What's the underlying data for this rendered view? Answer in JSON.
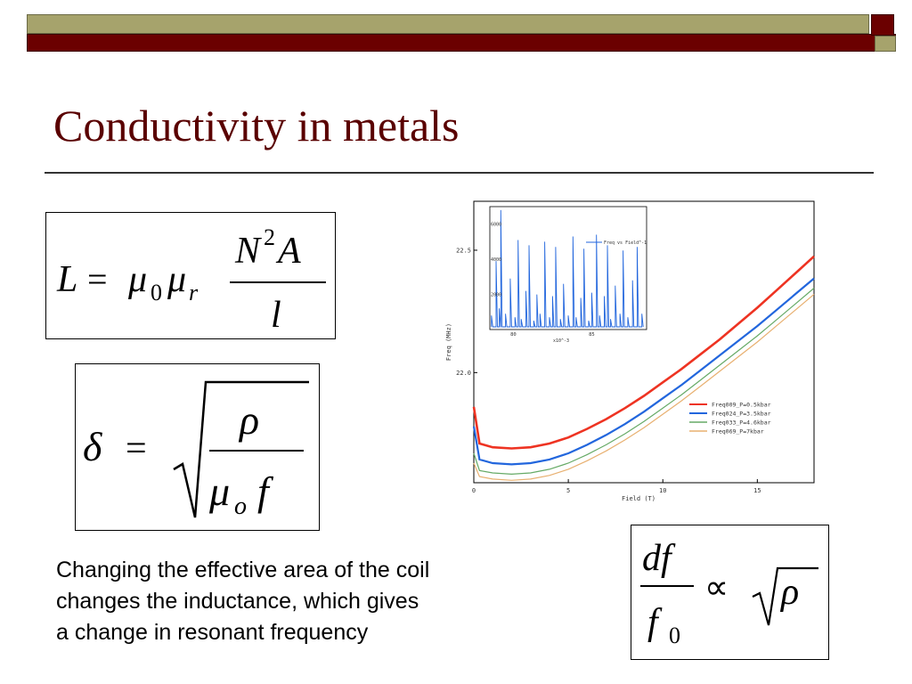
{
  "slide": {
    "title": "Conductivity in metals",
    "caption_lines": [
      "Changing the effective area of the coil",
      "changes the inductance, which gives",
      "a change in resonant frequency"
    ]
  },
  "equations": {
    "inductance": "L = μ0 μr N^2 A / l",
    "skin_depth": "δ = √(ρ / (μo f))",
    "proportionality": "df / f0 ∝ √ρ"
  },
  "chart_data": {
    "type": "line",
    "xlabel": "Field (T)",
    "ylabel": "Freq (MHz)",
    "xlim": [
      0,
      18
    ],
    "ylim": [
      21.55,
      22.7
    ],
    "x_ticks": [
      "0",
      "5",
      "10",
      "15"
    ],
    "y_ticks": [
      "22.0",
      "22.5"
    ],
    "legend_position": "right",
    "series": [
      {
        "name": "Freq009_P=0.5kbar",
        "color": "#ee3322",
        "width": 2.6,
        "x": [
          0,
          0.3,
          1,
          2,
          3,
          4,
          5,
          6,
          7,
          8,
          9,
          10,
          11,
          12,
          13,
          14,
          15,
          16,
          17,
          18
        ],
        "y": [
          21.86,
          21.71,
          21.695,
          21.69,
          21.695,
          21.71,
          21.735,
          21.77,
          21.81,
          21.855,
          21.905,
          21.96,
          22.015,
          22.075,
          22.135,
          22.2,
          22.265,
          22.335,
          22.405,
          22.475
        ]
      },
      {
        "name": "Freq024_P=3.5kbar",
        "color": "#2266dd",
        "width": 2.2,
        "x": [
          0,
          0.3,
          1,
          2,
          3,
          4,
          5,
          6,
          7,
          8,
          9,
          10,
          11,
          12,
          13,
          14,
          15,
          16,
          17,
          18
        ],
        "y": [
          21.78,
          21.645,
          21.63,
          21.625,
          21.63,
          21.645,
          21.67,
          21.705,
          21.745,
          21.79,
          21.84,
          21.895,
          21.95,
          22.01,
          22.07,
          22.13,
          22.19,
          22.255,
          22.32,
          22.385
        ]
      },
      {
        "name": "Freq033_P=4.6kbar",
        "color": "#66aa66",
        "width": 1.2,
        "x": [
          0,
          0.3,
          1,
          2,
          3,
          4,
          5,
          6,
          7,
          8,
          9,
          10,
          11,
          12,
          13,
          14,
          15,
          16,
          17,
          18
        ],
        "y": [
          21.67,
          21.6,
          21.59,
          21.585,
          21.59,
          21.605,
          21.63,
          21.665,
          21.705,
          21.75,
          21.8,
          21.855,
          21.91,
          21.97,
          22.03,
          22.09,
          22.15,
          22.215,
          22.28,
          22.345
        ]
      },
      {
        "name": "Freq069_P=7kbar",
        "color": "#e8b070",
        "width": 1.2,
        "x": [
          0,
          0.3,
          1,
          2,
          3,
          4,
          5,
          6,
          7,
          8,
          9,
          10,
          11,
          12,
          13,
          14,
          15,
          16,
          17,
          18
        ],
        "y": [
          21.63,
          21.575,
          21.565,
          21.56,
          21.565,
          21.58,
          21.605,
          21.64,
          21.68,
          21.725,
          21.775,
          21.83,
          21.885,
          21.945,
          22.005,
          22.065,
          22.125,
          22.19,
          22.255,
          22.32
        ]
      }
    ],
    "inset": {
      "type": "line",
      "legend": "Freq vs Field^-1",
      "x_ticks": [
        "80",
        "85"
      ],
      "x_multiplier": "x10^-3",
      "y_ticks": [
        "6000",
        "4000",
        "2000"
      ],
      "xlim": [
        78.5,
        88.5
      ],
      "ylim": [
        0,
        7000
      ],
      "color": "#2266dd",
      "x": [
        78.6,
        78.9,
        79.1,
        79.2,
        79.5,
        79.8,
        80.1,
        80.3,
        80.5,
        80.8,
        81.0,
        81.3,
        81.5,
        81.7,
        82.0,
        82.3,
        82.5,
        82.7,
        83.0,
        83.2,
        83.5,
        83.8,
        84.0,
        84.3,
        84.5,
        84.8,
        85.0,
        85.3,
        85.5,
        85.8,
        86.0,
        86.2,
        86.5,
        86.8,
        87.0,
        87.3,
        87.6,
        87.9,
        88.2
      ],
      "y": [
        800,
        3900,
        1200,
        6800,
        900,
        2900,
        700,
        5100,
        600,
        2200,
        4800,
        500,
        2000,
        900,
        5000,
        700,
        1900,
        4700,
        600,
        2600,
        800,
        5300,
        700,
        1800,
        4600,
        500,
        2100,
        5400,
        800,
        1900,
        4800,
        600,
        2500,
        900,
        4500,
        700,
        2800,
        4700,
        900
      ]
    }
  }
}
